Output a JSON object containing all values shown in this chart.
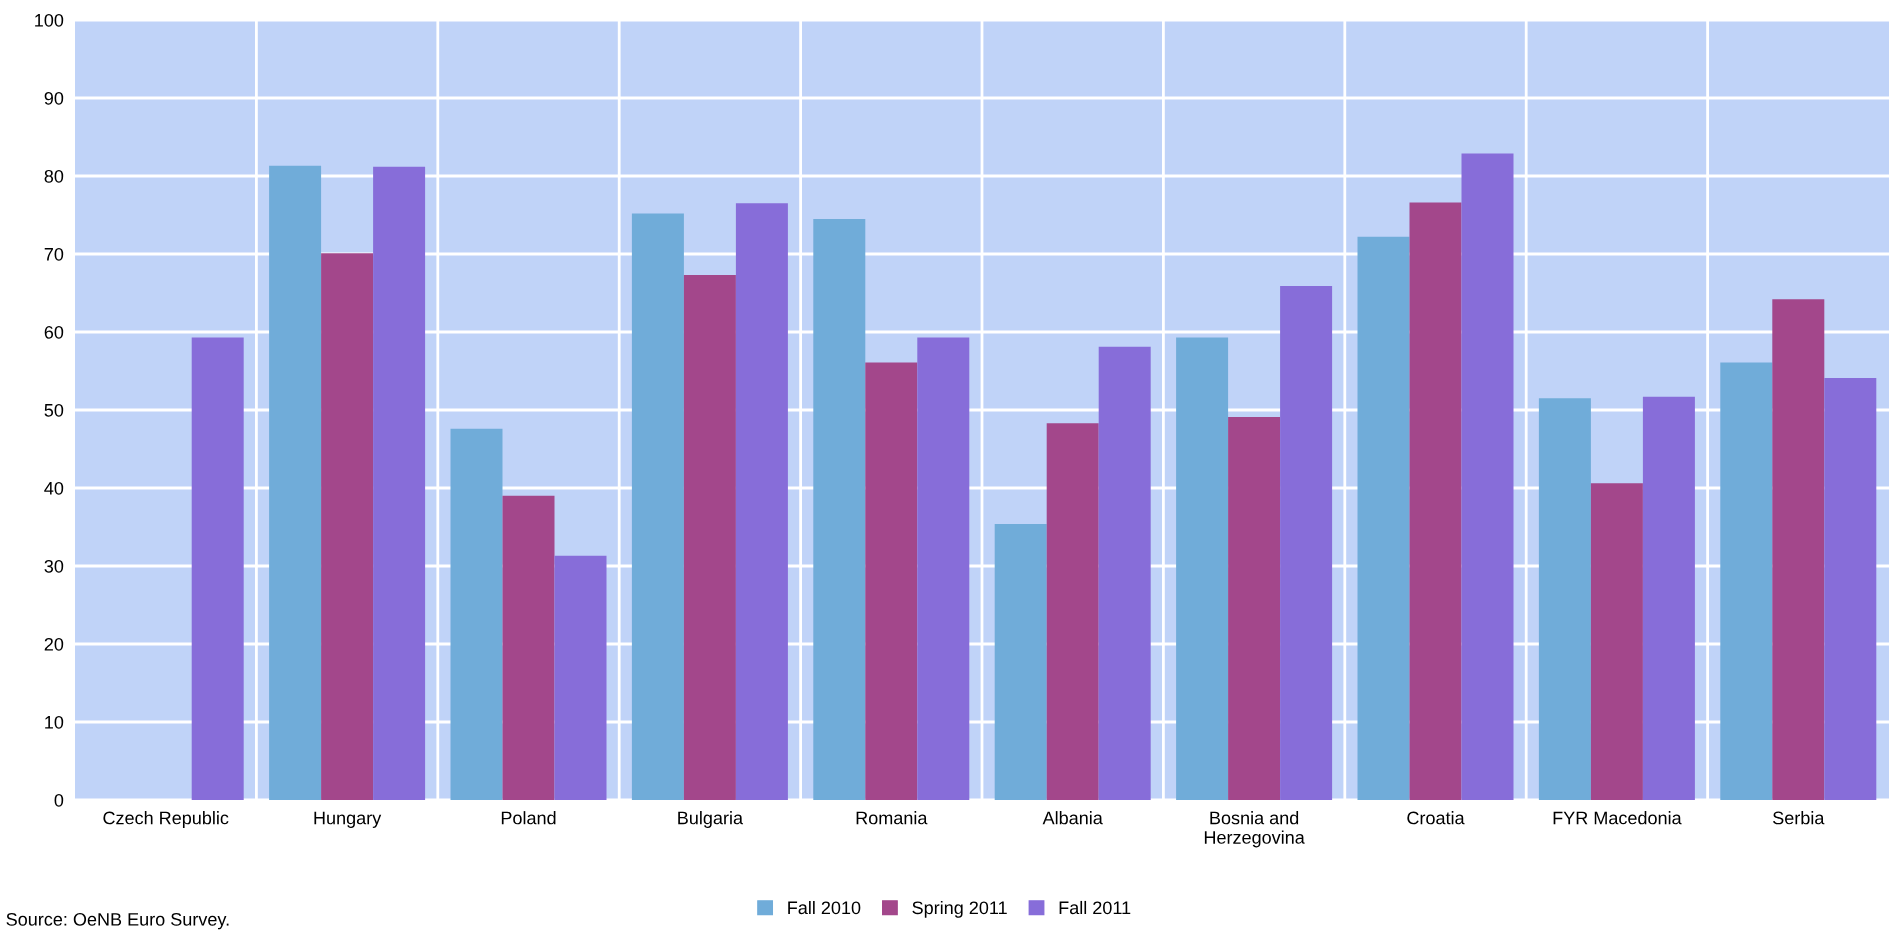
{
  "chart_data": {
    "type": "bar",
    "categories": [
      "Czech Republic",
      "Hungary",
      "Poland",
      "Bulgaria",
      "Romania",
      "Albania",
      "Bosnia and\nHerzegovina",
      "Croatia",
      "FYR Macedonia",
      "Serbia"
    ],
    "series": [
      {
        "name": "Fall 2010",
        "color": "#70acd9",
        "values": [
          null,
          81.3,
          47.6,
          75.2,
          74.5,
          35.4,
          59.3,
          72.2,
          51.5,
          56.1
        ]
      },
      {
        "name": "Spring 2011",
        "color": "#a3478b",
        "values": [
          null,
          70.1,
          39.0,
          67.3,
          56.1,
          48.3,
          49.1,
          76.6,
          40.6,
          64.2
        ]
      },
      {
        "name": "Fall 2011",
        "color": "#876dd9",
        "values": [
          59.3,
          81.2,
          31.3,
          76.5,
          59.3,
          58.1,
          65.9,
          82.9,
          51.7,
          54.1
        ]
      }
    ],
    "ylim": [
      0,
      100
    ],
    "yticks": [
      0,
      10,
      20,
      30,
      40,
      50,
      60,
      70,
      80,
      90,
      100
    ],
    "grid": true,
    "legend": "bottom",
    "annotations": [
      "Source: OeNB Euro Survey."
    ]
  }
}
